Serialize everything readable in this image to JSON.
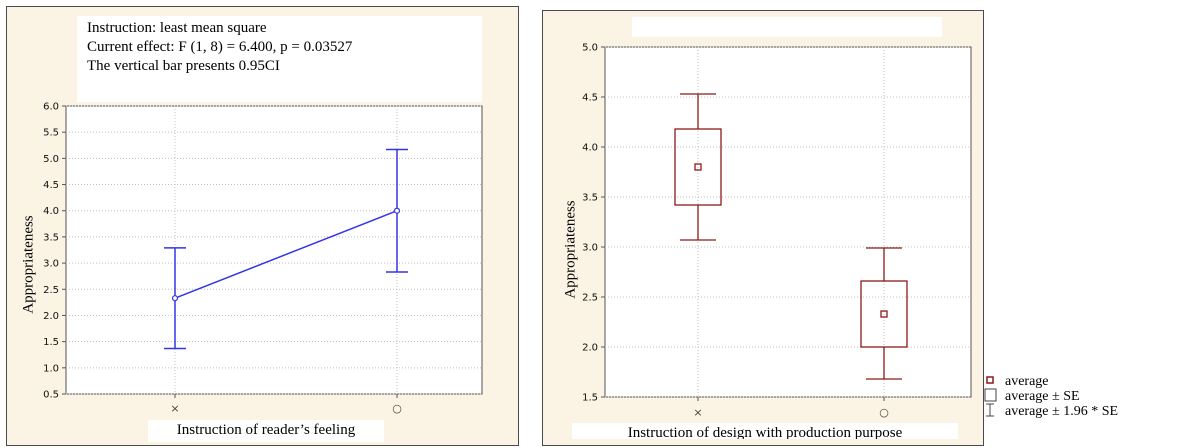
{
  "left_chart": {
    "annotation": {
      "line1": "Instruction: least mean square",
      "line2": "Current effect: F (1, 8) = 6.400, p = 0.03527",
      "line3": "The vertical bar presents 0.95CI"
    },
    "ylabel": "Appropriateness",
    "xlabel": "Instruction of reader’s feeling"
  },
  "right_chart": {
    "ylabel": "Appropriateness",
    "xlabel": "Instruction of design with production purpose"
  },
  "legend": {
    "items": [
      "average",
      "average ± SE",
      "average ± 1.96  * SE"
    ]
  },
  "colors": {
    "left_series": "#3535e8",
    "right_series": "#8b1a1a",
    "plot_bg": "#ffffff",
    "panel_bg": "#fbf3e3"
  },
  "chart_data": [
    {
      "type": "line",
      "categories": [
        "×",
        "○"
      ],
      "series": [
        {
          "values": [
            2.33,
            4.0
          ],
          "ci_lower": [
            1.37,
            2.83
          ],
          "ci_upper": [
            3.29,
            5.17
          ]
        }
      ],
      "ylabel": "Appropriateness",
      "xlabel": "Instruction of reader’s feeling",
      "ylim": [
        0.5,
        6.0
      ],
      "yticks": [
        "0.5",
        "1.0",
        "1.5",
        "2.0",
        "2.5",
        "3.0",
        "3.5",
        "4.0",
        "4.5",
        "5.0",
        "5.5",
        "6.0"
      ],
      "grid": true
    },
    {
      "type": "box",
      "categories": [
        "×",
        "○"
      ],
      "series": [
        {
          "mean": [
            3.8,
            2.33
          ],
          "se_lower": [
            3.42,
            2.0
          ],
          "se_upper": [
            4.18,
            2.66
          ],
          "ci_lower": [
            3.07,
            1.68
          ],
          "ci_upper": [
            4.53,
            2.99
          ]
        }
      ],
      "ylabel": "Appropriateness",
      "xlabel": "Instruction of design with production purpose",
      "ylim": [
        1.5,
        5.0
      ],
      "yticks": [
        "1.5",
        "2.0",
        "2.5",
        "3.0",
        "3.5",
        "4.0",
        "4.5",
        "5.0"
      ],
      "grid": true,
      "legend_position": "bottom-right"
    }
  ]
}
